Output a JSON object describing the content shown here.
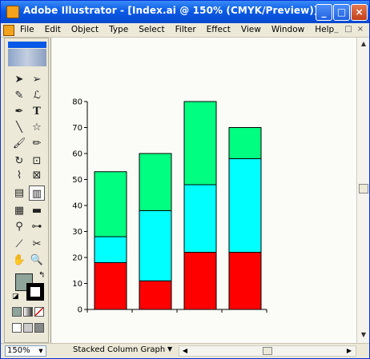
{
  "window": {
    "title": "Adobe Illustrator - [Index.ai @ 150% (CMYK/Preview)]",
    "controls": [
      "_",
      "□",
      "×"
    ]
  },
  "menu": {
    "items": [
      "File",
      "Edit",
      "Object",
      "Type",
      "Select",
      "Filter",
      "Effect",
      "View",
      "Window",
      "Help"
    ],
    "mdi_controls": [
      "_",
      "□",
      "×"
    ]
  },
  "toolbox": {
    "tools": [
      "selection-icon",
      "direct-selection-icon",
      "magic-wand-icon",
      "lasso-icon",
      "pen-icon",
      "type-icon",
      "line-icon",
      "star-icon",
      "paintbrush-icon",
      "pencil-icon",
      "rotate-icon",
      "scale-icon",
      "warp-icon",
      "free-transform-icon",
      "symbol-sprayer-icon",
      "graph-icon",
      "mesh-icon",
      "gradient-icon",
      "eyedropper-icon",
      "blend-icon",
      "slice-icon",
      "scissors-icon",
      "hand-icon",
      "zoom-icon"
    ],
    "active_tool": "graph-icon",
    "fill_color": "#8fa49b",
    "stroke_color": "#000000"
  },
  "status": {
    "zoom": "150%",
    "tool_name": "Stacked Column Graph"
  },
  "chart_data": {
    "type": "bar",
    "stacked": true,
    "categories": [
      "",
      "",
      "",
      ""
    ],
    "series": [
      {
        "color": "#ff0000",
        "values": [
          18,
          11,
          22,
          22
        ]
      },
      {
        "color": "#00ffff",
        "values": [
          10,
          27,
          26,
          36
        ]
      },
      {
        "color": "#00ff80",
        "values": [
          25,
          22,
          32,
          12
        ]
      }
    ],
    "yticks": [
      "0",
      "10",
      "20",
      "30",
      "40",
      "50",
      "60",
      "70",
      "80"
    ],
    "ylim": [
      0,
      80
    ],
    "grid": false,
    "legend": "none"
  }
}
